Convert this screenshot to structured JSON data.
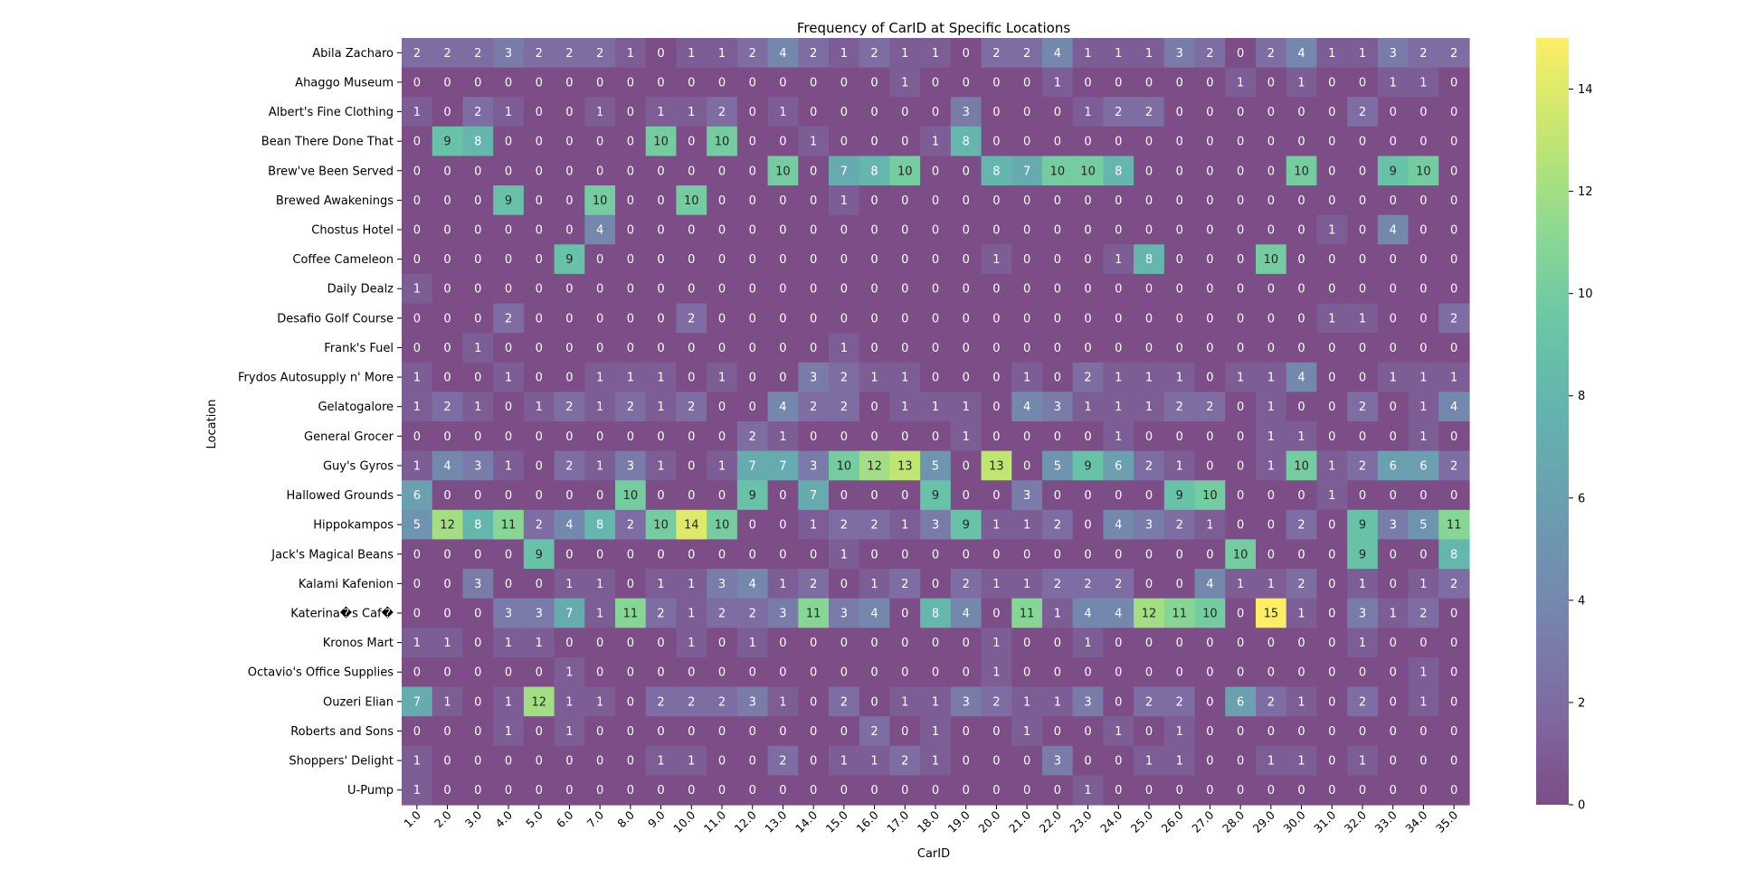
{
  "chart_data": {
    "type": "heatmap",
    "title": "Frequency of CarID at Specific Locations",
    "xlabel": "CarID",
    "ylabel": "Location",
    "x": [
      "1.0",
      "2.0",
      "3.0",
      "4.0",
      "5.0",
      "6.0",
      "7.0",
      "8.0",
      "9.0",
      "10.0",
      "11.0",
      "12.0",
      "13.0",
      "14.0",
      "15.0",
      "16.0",
      "17.0",
      "18.0",
      "19.0",
      "20.0",
      "21.0",
      "22.0",
      "23.0",
      "24.0",
      "25.0",
      "26.0",
      "27.0",
      "28.0",
      "29.0",
      "30.0",
      "31.0",
      "32.0",
      "33.0",
      "34.0",
      "35.0"
    ],
    "y": [
      "Abila Zacharo",
      "Ahaggo Museum",
      "Albert's Fine Clothing",
      "Bean There Done That",
      "Brew've Been Served",
      "Brewed Awakenings",
      "Chostus Hotel",
      "Coffee Cameleon",
      "Daily Dealz",
      "Desafio Golf Course",
      "Frank's Fuel",
      "Frydos Autosupply n' More",
      "Gelatogalore",
      "General Grocer",
      "Guy's Gyros",
      "Hallowed Grounds",
      "Hippokampos",
      "Jack's Magical Beans",
      "Kalami Kafenion",
      "Katerina�s Caf�",
      "Kronos Mart",
      "Octavio's Office Supplies",
      "Ouzeri Elian",
      "Roberts and Sons",
      "Shoppers' Delight",
      "U-Pump"
    ],
    "values": [
      [
        2,
        2,
        2,
        3,
        2,
        2,
        2,
        1,
        0,
        1,
        1,
        2,
        4,
        2,
        1,
        2,
        1,
        1,
        0,
        2,
        2,
        4,
        1,
        1,
        1,
        3,
        2,
        0,
        2,
        4,
        1,
        1,
        3,
        2,
        2
      ],
      [
        0,
        0,
        0,
        0,
        0,
        0,
        0,
        0,
        0,
        0,
        0,
        0,
        0,
        0,
        0,
        0,
        1,
        0,
        0,
        0,
        0,
        1,
        0,
        0,
        0,
        0,
        0,
        1,
        0,
        1,
        0,
        0,
        1,
        1,
        0
      ],
      [
        1,
        0,
        2,
        1,
        0,
        0,
        1,
        0,
        1,
        1,
        2,
        0,
        1,
        0,
        0,
        0,
        0,
        0,
        3,
        0,
        0,
        0,
        1,
        2,
        2,
        0,
        0,
        0,
        0,
        0,
        0,
        2,
        0,
        0,
        0
      ],
      [
        0,
        9,
        8,
        0,
        0,
        0,
        0,
        0,
        10,
        0,
        10,
        0,
        0,
        1,
        0,
        0,
        0,
        1,
        8,
        0,
        0,
        0,
        0,
        0,
        0,
        0,
        0,
        0,
        0,
        0,
        0,
        0,
        0,
        0,
        0
      ],
      [
        0,
        0,
        0,
        0,
        0,
        0,
        0,
        0,
        0,
        0,
        0,
        0,
        10,
        0,
        7,
        8,
        10,
        0,
        0,
        8,
        7,
        10,
        10,
        8,
        0,
        0,
        0,
        0,
        0,
        10,
        0,
        0,
        9,
        10,
        0
      ],
      [
        0,
        0,
        0,
        9,
        0,
        0,
        10,
        0,
        0,
        10,
        0,
        0,
        0,
        0,
        1,
        0,
        0,
        0,
        0,
        0,
        0,
        0,
        0,
        0,
        0,
        0,
        0,
        0,
        0,
        0,
        0,
        0,
        0,
        0,
        0
      ],
      [
        0,
        0,
        0,
        0,
        0,
        0,
        4,
        0,
        0,
        0,
        0,
        0,
        0,
        0,
        0,
        0,
        0,
        0,
        0,
        0,
        0,
        0,
        0,
        0,
        0,
        0,
        0,
        0,
        0,
        0,
        1,
        0,
        4,
        0,
        0
      ],
      [
        0,
        0,
        0,
        0,
        0,
        9,
        0,
        0,
        0,
        0,
        0,
        0,
        0,
        0,
        0,
        0,
        0,
        0,
        0,
        1,
        0,
        0,
        0,
        1,
        8,
        0,
        0,
        0,
        10,
        0,
        0,
        0,
        0,
        0,
        0
      ],
      [
        1,
        0,
        0,
        0,
        0,
        0,
        0,
        0,
        0,
        0,
        0,
        0,
        0,
        0,
        0,
        0,
        0,
        0,
        0,
        0,
        0,
        0,
        0,
        0,
        0,
        0,
        0,
        0,
        0,
        0,
        0,
        0,
        0,
        0,
        0
      ],
      [
        0,
        0,
        0,
        2,
        0,
        0,
        0,
        0,
        0,
        2,
        0,
        0,
        0,
        0,
        0,
        0,
        0,
        0,
        0,
        0,
        0,
        0,
        0,
        0,
        0,
        0,
        0,
        0,
        0,
        0,
        1,
        1,
        0,
        0,
        2
      ],
      [
        0,
        0,
        1,
        0,
        0,
        0,
        0,
        0,
        0,
        0,
        0,
        0,
        0,
        0,
        1,
        0,
        0,
        0,
        0,
        0,
        0,
        0,
        0,
        0,
        0,
        0,
        0,
        0,
        0,
        0,
        0,
        0,
        0,
        0,
        0
      ],
      [
        1,
        0,
        0,
        1,
        0,
        0,
        1,
        1,
        1,
        0,
        1,
        0,
        0,
        3,
        2,
        1,
        1,
        0,
        0,
        0,
        1,
        0,
        2,
        1,
        1,
        1,
        0,
        1,
        1,
        4,
        0,
        0,
        1,
        1,
        1
      ],
      [
        1,
        2,
        1,
        0,
        1,
        2,
        1,
        2,
        1,
        2,
        0,
        0,
        4,
        2,
        2,
        0,
        1,
        1,
        1,
        0,
        4,
        3,
        1,
        1,
        1,
        2,
        2,
        0,
        1,
        0,
        0,
        2,
        0,
        1,
        4
      ],
      [
        0,
        0,
        0,
        0,
        0,
        0,
        0,
        0,
        0,
        0,
        0,
        2,
        1,
        0,
        0,
        0,
        0,
        0,
        1,
        0,
        0,
        0,
        0,
        1,
        0,
        0,
        0,
        0,
        1,
        1,
        0,
        0,
        0,
        1,
        0
      ],
      [
        1,
        4,
        3,
        1,
        0,
        2,
        1,
        3,
        1,
        0,
        1,
        7,
        7,
        3,
        10,
        12,
        13,
        5,
        0,
        13,
        0,
        5,
        9,
        6,
        2,
        1,
        0,
        0,
        1,
        10,
        1,
        2,
        6,
        6,
        2
      ],
      [
        6,
        0,
        0,
        0,
        0,
        0,
        0,
        10,
        0,
        0,
        0,
        9,
        0,
        7,
        0,
        0,
        0,
        9,
        0,
        0,
        3,
        0,
        0,
        0,
        0,
        9,
        10,
        0,
        0,
        0,
        1,
        0,
        0,
        0,
        0
      ],
      [
        5,
        12,
        8,
        11,
        2,
        4,
        8,
        2,
        10,
        14,
        10,
        0,
        0,
        1,
        2,
        2,
        1,
        3,
        9,
        1,
        1,
        2,
        0,
        4,
        3,
        2,
        1,
        0,
        0,
        2,
        0,
        9,
        3,
        5,
        11
      ],
      [
        0,
        0,
        0,
        0,
        9,
        0,
        0,
        0,
        0,
        0,
        0,
        0,
        0,
        0,
        1,
        0,
        0,
        0,
        0,
        0,
        0,
        0,
        0,
        0,
        0,
        0,
        0,
        10,
        0,
        0,
        0,
        9,
        0,
        0,
        8
      ],
      [
        0,
        0,
        3,
        0,
        0,
        1,
        1,
        0,
        1,
        1,
        3,
        4,
        1,
        2,
        0,
        1,
        2,
        0,
        2,
        1,
        1,
        2,
        2,
        2,
        0,
        0,
        4,
        1,
        1,
        2,
        0,
        1,
        0,
        1,
        2
      ],
      [
        0,
        0,
        0,
        3,
        3,
        7,
        1,
        11,
        2,
        1,
        2,
        2,
        3,
        11,
        3,
        4,
        0,
        8,
        4,
        0,
        11,
        1,
        4,
        4,
        12,
        11,
        10,
        0,
        15,
        1,
        0,
        3,
        1,
        2,
        0
      ],
      [
        1,
        1,
        0,
        1,
        1,
        0,
        0,
        0,
        0,
        1,
        0,
        1,
        0,
        0,
        0,
        0,
        0,
        0,
        0,
        1,
        0,
        0,
        1,
        0,
        0,
        0,
        0,
        0,
        0,
        0,
        0,
        1,
        0,
        0,
        0
      ],
      [
        0,
        0,
        0,
        0,
        0,
        1,
        0,
        0,
        0,
        0,
        0,
        0,
        0,
        0,
        0,
        0,
        0,
        0,
        0,
        1,
        0,
        0,
        0,
        0,
        0,
        0,
        0,
        0,
        0,
        0,
        0,
        0,
        0,
        1,
        0
      ],
      [
        7,
        1,
        0,
        1,
        12,
        1,
        1,
        0,
        2,
        2,
        2,
        3,
        1,
        0,
        2,
        0,
        1,
        1,
        3,
        2,
        1,
        1,
        3,
        0,
        2,
        2,
        0,
        6,
        2,
        1,
        0,
        2,
        0,
        1,
        0
      ],
      [
        0,
        0,
        0,
        1,
        0,
        1,
        0,
        0,
        0,
        0,
        0,
        0,
        0,
        0,
        0,
        2,
        0,
        1,
        0,
        0,
        1,
        0,
        0,
        1,
        0,
        1,
        0,
        0,
        0,
        0,
        0,
        0,
        0,
        0,
        0
      ],
      [
        1,
        0,
        0,
        0,
        0,
        0,
        0,
        0,
        1,
        1,
        0,
        0,
        2,
        0,
        1,
        1,
        2,
        1,
        0,
        0,
        0,
        3,
        0,
        0,
        1,
        1,
        0,
        0,
        1,
        1,
        0,
        1,
        0,
        0,
        0
      ],
      [
        1,
        0,
        0,
        0,
        0,
        0,
        0,
        0,
        0,
        0,
        0,
        0,
        0,
        0,
        0,
        0,
        0,
        0,
        0,
        0,
        0,
        0,
        1,
        0,
        0,
        0,
        0,
        0,
        0,
        0,
        0,
        0,
        0,
        0,
        0
      ]
    ],
    "colorbar": {
      "min": 0,
      "max": 15,
      "ticks": [
        0,
        2,
        4,
        6,
        8,
        10,
        12,
        14
      ]
    },
    "colormap": "viridis",
    "cell_alpha": 0.7,
    "annotated": true,
    "grid": false
  }
}
